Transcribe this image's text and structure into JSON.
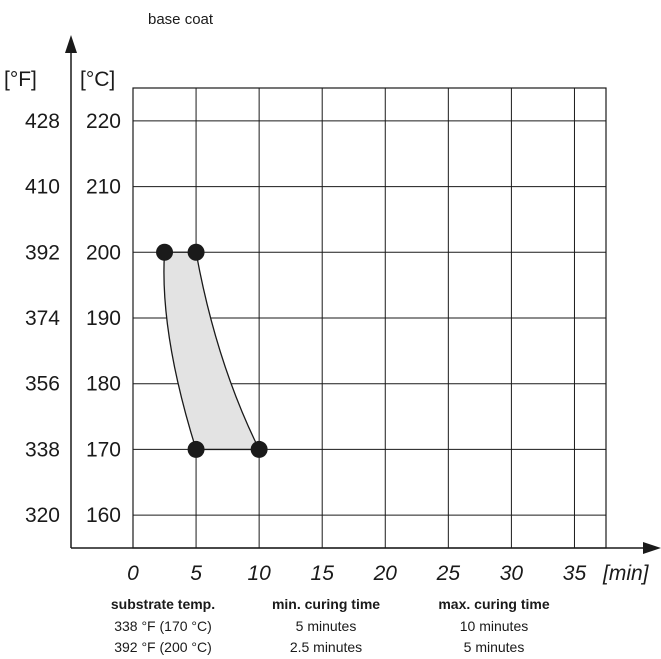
{
  "chart_data": {
    "type": "area",
    "title": "base coat",
    "x_unit": "[min]",
    "y_unit_celsius": "[°C]",
    "y_unit_fahrenheit": "[°F]",
    "xlim": [
      0,
      37.5
    ],
    "ylim_celsius": [
      155,
      225
    ],
    "x_ticks": [
      0,
      5,
      10,
      15,
      20,
      25,
      30,
      35
    ],
    "x_tick_labels": [
      "0",
      "5",
      "10",
      "15",
      "20",
      "25",
      "30",
      "35"
    ],
    "y_ticks_celsius": [
      160,
      170,
      180,
      190,
      200,
      210,
      220
    ],
    "y_tick_labels_celsius": [
      "160",
      "170",
      "180",
      "190",
      "200",
      "210",
      "220"
    ],
    "y_tick_labels_fahrenheit": [
      "320",
      "338",
      "356",
      "374",
      "392",
      "410",
      "428"
    ],
    "grid": true,
    "curing_window": {
      "points": [
        {
          "x": 2.5,
          "y": 200
        },
        {
          "x": 5,
          "y": 200
        },
        {
          "x": 10,
          "y": 170
        },
        {
          "x": 5,
          "y": 170
        }
      ],
      "fill_color": "#e3e3e3",
      "point_color": "#1a1a1a"
    },
    "table": {
      "headers": [
        "substrate temp.",
        "min. curing time",
        "max. curing time"
      ],
      "rows": [
        [
          "338 °F (170 °C)",
          "5 minutes",
          "10 minutes"
        ],
        [
          "392 °F (200 °C)",
          "2.5 minutes",
          "5 minutes"
        ]
      ]
    }
  }
}
